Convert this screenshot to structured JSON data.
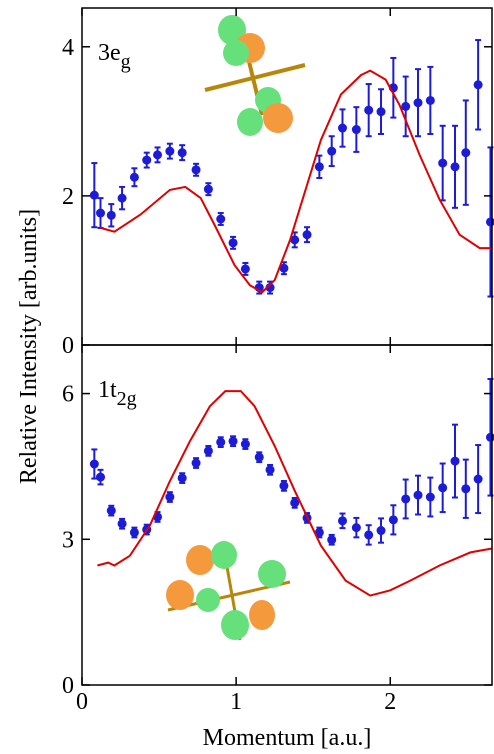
{
  "chart_data": [
    {
      "type": "scatter",
      "annotation": {
        "text": "3e",
        "subscript": "g"
      },
      "ylabel": "Relative Intensity [arb.units]",
      "xlim": [
        0,
        2.66
      ],
      "xticks": [
        0,
        1,
        2
      ],
      "ylim": [
        0,
        4.52
      ],
      "yticks": [
        0,
        2,
        4
      ],
      "series": [
        {
          "kind": "points",
          "color": "#1c1cd8",
          "x": [
            0.08,
            0.12,
            0.19,
            0.26,
            0.34,
            0.42,
            0.49,
            0.57,
            0.65,
            0.74,
            0.82,
            0.9,
            0.98,
            1.06,
            1.15,
            1.22,
            1.31,
            1.38,
            1.46,
            1.54,
            1.62,
            1.69,
            1.78,
            1.86,
            1.94,
            2.02,
            2.1,
            2.18,
            2.26,
            2.34,
            2.42,
            2.49,
            2.57,
            2.65
          ],
          "values": [
            2.01,
            1.77,
            1.74,
            1.97,
            2.25,
            2.48,
            2.55,
            2.6,
            2.58,
            2.35,
            2.09,
            1.69,
            1.37,
            1.02,
            0.77,
            0.77,
            1.03,
            1.41,
            1.48,
            2.39,
            2.6,
            2.91,
            2.89,
            3.15,
            3.13,
            3.45,
            3.2,
            3.25,
            3.28,
            2.44,
            2.39,
            2.58,
            3.49,
            1.65
          ],
          "errors": [
            0.43,
            0.2,
            0.15,
            0.15,
            0.12,
            0.1,
            0.1,
            0.1,
            0.1,
            0.08,
            0.08,
            0.08,
            0.08,
            0.08,
            0.08,
            0.08,
            0.08,
            0.1,
            0.1,
            0.15,
            0.2,
            0.25,
            0.3,
            0.35,
            0.3,
            0.4,
            0.4,
            0.45,
            0.45,
            0.5,
            0.55,
            0.7,
            0.6,
            1.0
          ]
        },
        {
          "kind": "line",
          "color": "#e00000",
          "x": [
            0.12,
            0.21,
            0.38,
            0.57,
            0.67,
            0.77,
            0.86,
            0.99,
            1.09,
            1.17,
            1.25,
            1.35,
            1.45,
            1.55,
            1.68,
            1.81,
            1.87,
            1.97,
            2.06,
            2.19,
            2.32,
            2.45,
            2.58,
            2.66
          ],
          "values": [
            1.57,
            1.52,
            1.75,
            2.08,
            2.12,
            1.97,
            1.61,
            1.07,
            0.8,
            0.71,
            0.87,
            1.41,
            2.08,
            2.75,
            3.36,
            3.62,
            3.68,
            3.56,
            3.22,
            2.55,
            1.95,
            1.48,
            1.3,
            1.3
          ]
        }
      ]
    },
    {
      "type": "scatter",
      "annotation": {
        "text": "1t",
        "subscript": "2g"
      },
      "xlabel": "Momentum [a.u.]",
      "xlim": [
        0,
        2.66
      ],
      "xticks": [
        0,
        1,
        2
      ],
      "ylim": [
        0,
        7
      ],
      "yticks": [
        0,
        3,
        6
      ],
      "series": [
        {
          "kind": "points",
          "color": "#1c1cd8",
          "x": [
            0.08,
            0.12,
            0.19,
            0.26,
            0.34,
            0.42,
            0.49,
            0.57,
            0.65,
            0.74,
            0.82,
            0.9,
            0.98,
            1.06,
            1.15,
            1.22,
            1.31,
            1.38,
            1.46,
            1.54,
            1.62,
            1.69,
            1.78,
            1.86,
            1.94,
            2.02,
            2.1,
            2.18,
            2.26,
            2.34,
            2.42,
            2.49,
            2.57,
            2.65
          ],
          "values": [
            4.55,
            4.28,
            3.59,
            3.32,
            3.14,
            3.2,
            3.46,
            3.87,
            4.26,
            4.57,
            4.82,
            5.0,
            5.02,
            4.96,
            4.69,
            4.43,
            4.1,
            3.75,
            3.44,
            3.14,
            2.99,
            3.38,
            3.24,
            3.09,
            3.18,
            3.4,
            3.83,
            3.91,
            3.87,
            4.06,
            4.61,
            4.04,
            4.24,
            5.1
          ],
          "errors": [
            0.3,
            0.15,
            0.1,
            0.1,
            0.1,
            0.1,
            0.1,
            0.1,
            0.1,
            0.1,
            0.1,
            0.1,
            0.1,
            0.1,
            0.1,
            0.1,
            0.1,
            0.1,
            0.1,
            0.1,
            0.1,
            0.15,
            0.2,
            0.2,
            0.25,
            0.3,
            0.4,
            0.4,
            0.4,
            0.5,
            0.75,
            0.6,
            0.7,
            1.2
          ]
        },
        {
          "kind": "line",
          "color": "#e00000",
          "x": [
            0.1,
            0.17,
            0.21,
            0.31,
            0.44,
            0.57,
            0.7,
            0.83,
            0.93,
            1.03,
            1.12,
            1.25,
            1.38,
            1.55,
            1.71,
            1.87,
            2.0,
            2.13,
            2.32,
            2.52,
            2.66
          ],
          "values": [
            2.46,
            2.52,
            2.46,
            2.66,
            3.28,
            4.2,
            5.02,
            5.74,
            6.05,
            6.05,
            5.74,
            4.92,
            4.0,
            2.87,
            2.15,
            1.84,
            1.95,
            2.15,
            2.46,
            2.73,
            2.81
          ]
        }
      ]
    }
  ]
}
